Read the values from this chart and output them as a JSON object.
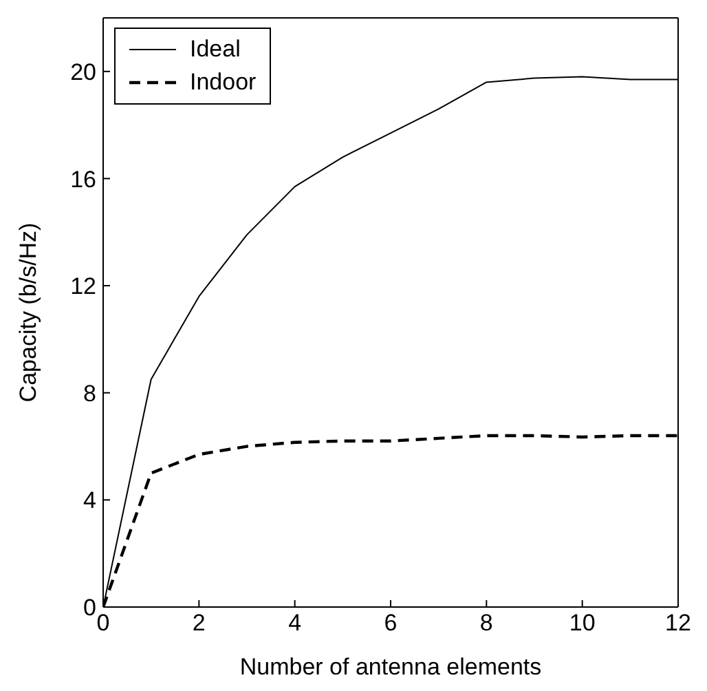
{
  "chart_data": {
    "type": "line",
    "xlabel": "Number of antenna elements",
    "ylabel": "Capacity (b/s/Hz)",
    "x": [
      0,
      1,
      2,
      3,
      4,
      5,
      6,
      7,
      8,
      9,
      10,
      11,
      12
    ],
    "series": [
      {
        "name": "Ideal",
        "color": "#000000",
        "line_style": "solid",
        "values": [
          0,
          8.5,
          11.6,
          13.9,
          15.7,
          16.8,
          17.7,
          18.6,
          19.6,
          19.75,
          19.8,
          19.7,
          19.7
        ]
      },
      {
        "name": "Indoor",
        "color": "#000000",
        "line_style": "dashed",
        "values": [
          0,
          5.0,
          5.7,
          6.0,
          6.15,
          6.2,
          6.2,
          6.3,
          6.4,
          6.4,
          6.35,
          6.4,
          6.4
        ]
      }
    ],
    "xlim": [
      0,
      12
    ],
    "xticks": [
      0,
      2,
      4,
      6,
      8,
      10,
      12
    ],
    "ylim": [
      0,
      22
    ],
    "yticks": [
      0,
      4,
      8,
      12,
      16,
      20
    ],
    "grid": false,
    "legend": "top left",
    "marker": "none"
  }
}
